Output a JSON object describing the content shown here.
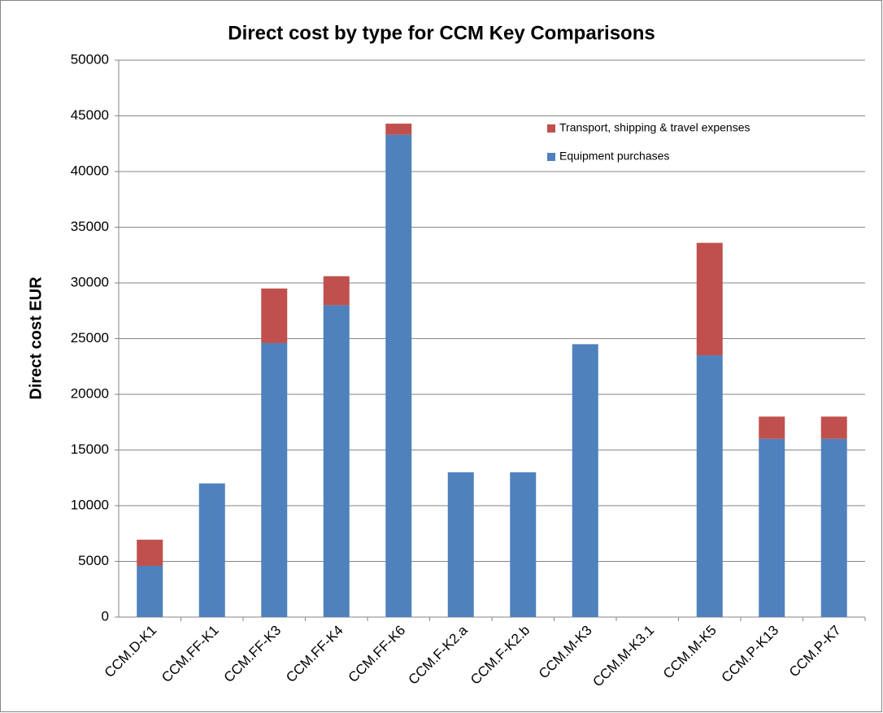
{
  "chart_data": {
    "type": "stacked_bar",
    "title": "Direct cost by type for CCM Key Comparisons",
    "y_label": "Direct cost EUR",
    "categories": [
      "CCM.D-K1",
      "CCM.FF-K1",
      "CCM.FF-K3",
      "CCM.FF-K4",
      "CCM.FF-K6",
      "CCM.F-K2.a",
      "CCM.F-K2.b",
      "CCM.M-K3",
      "CCM.M-K3.1",
      "CCM.M-K5",
      "CCM.P-K13",
      "CCM.P-K7"
    ],
    "series": [
      {
        "name": "Equipment purchases",
        "color": "#4f81bd",
        "values": [
          4600,
          12000,
          24600,
          28000,
          43300,
          13000,
          13000,
          24500,
          0,
          23500,
          16000,
          16000
        ]
      },
      {
        "name": "Transport, shipping & travel expenses",
        "color": "#c0504d",
        "values": [
          2350,
          0,
          4900,
          2600,
          1000,
          0,
          0,
          0,
          0,
          10100,
          2000,
          2000
        ]
      }
    ],
    "ylim": [
      0,
      50000
    ],
    "yticks": [
      0,
      5000,
      10000,
      15000,
      20000,
      25000,
      30000,
      35000,
      40000,
      45000,
      50000
    ],
    "grid": true
  }
}
